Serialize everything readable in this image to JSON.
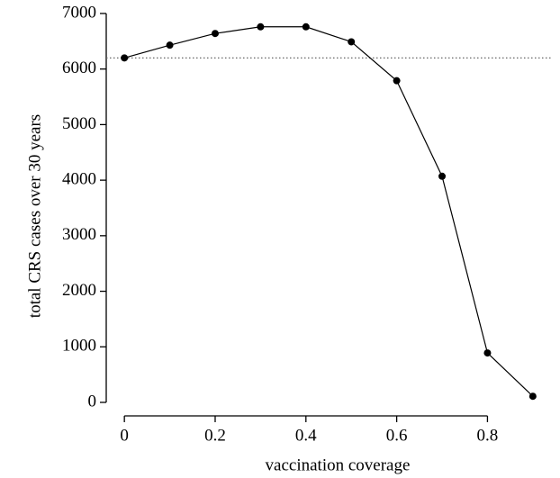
{
  "chart_data": {
    "type": "line",
    "x": [
      0,
      0.1,
      0.2,
      0.3,
      0.4,
      0.5,
      0.6,
      0.7,
      0.8,
      0.9
    ],
    "series": [
      {
        "values": [
          6200,
          6430,
          6640,
          6760,
          6760,
          6490,
          5790,
          4070,
          890,
          110
        ],
        "color": "#000000"
      }
    ],
    "reference_line": {
      "value": 6200,
      "color": "#666666",
      "style": "dotted"
    },
    "xlabel": "vaccination coverage",
    "ylabel": "total CRS cases over 30 years",
    "xlim": [
      -0.04,
      0.94
    ],
    "ylim": [
      -243,
      7113
    ],
    "xticks": [
      0,
      0.2,
      0.4,
      0.6,
      0.8
    ],
    "yticks": [
      0,
      1000,
      2000,
      3000,
      4000,
      5000,
      6000,
      7000
    ],
    "grid": false
  }
}
